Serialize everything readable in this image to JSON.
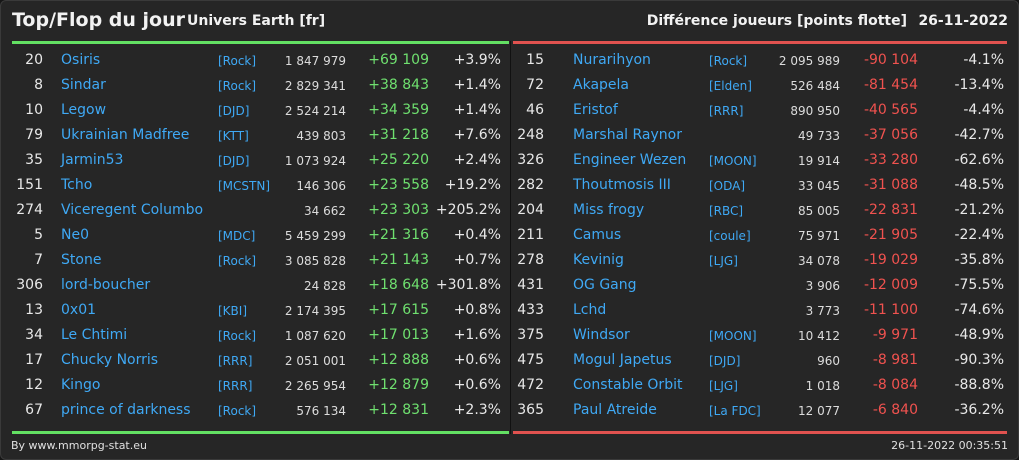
{
  "header": {
    "title": "Top/Flop du jour",
    "subtitle": "Univers Earth [fr]",
    "metric": "Différence joueurs [points flotte]",
    "date": "26-11-2022"
  },
  "colors": {
    "gain": "#6fe06f",
    "loss": "#f0524f",
    "link": "#3fa9f5"
  },
  "top": [
    {
      "rank": "20",
      "name": "Osiris",
      "alliance": "[Rock]",
      "points": "1 847 979",
      "diff": "+69 109",
      "pct": "+3.9%"
    },
    {
      "rank": "8",
      "name": "Sindar",
      "alliance": "[Rock]",
      "points": "2 829 341",
      "diff": "+38 843",
      "pct": "+1.4%"
    },
    {
      "rank": "10",
      "name": "Legow",
      "alliance": "[DJD]",
      "points": "2 524 214",
      "diff": "+34 359",
      "pct": "+1.4%"
    },
    {
      "rank": "79",
      "name": "Ukrainian Madfree",
      "alliance": "[KTT]",
      "points": "439 803",
      "diff": "+31 218",
      "pct": "+7.6%"
    },
    {
      "rank": "35",
      "name": "Jarmin53",
      "alliance": "[DJD]",
      "points": "1 073 924",
      "diff": "+25 220",
      "pct": "+2.4%"
    },
    {
      "rank": "151",
      "name": "Tcho",
      "alliance": "[MCSTN]",
      "points": "146 306",
      "diff": "+23 558",
      "pct": "+19.2%"
    },
    {
      "rank": "274",
      "name": "Viceregent Columbo",
      "alliance": "",
      "points": "34 662",
      "diff": "+23 303",
      "pct": "+205.2%"
    },
    {
      "rank": "5",
      "name": "Ne0",
      "alliance": "[MDC]",
      "points": "5 459 299",
      "diff": "+21 316",
      "pct": "+0.4%"
    },
    {
      "rank": "7",
      "name": "Stone",
      "alliance": "[Rock]",
      "points": "3 085 828",
      "diff": "+21 143",
      "pct": "+0.7%"
    },
    {
      "rank": "306",
      "name": "lord-boucher",
      "alliance": "",
      "points": "24 828",
      "diff": "+18 648",
      "pct": "+301.8%"
    },
    {
      "rank": "13",
      "name": "0x01",
      "alliance": "[KBI]",
      "points": "2 174 395",
      "diff": "+17 615",
      "pct": "+0.8%"
    },
    {
      "rank": "34",
      "name": "Le Chtimi",
      "alliance": "[Rock]",
      "points": "1 087 620",
      "diff": "+17 013",
      "pct": "+1.6%"
    },
    {
      "rank": "17",
      "name": "Chucky Norris",
      "alliance": "[RRR]",
      "points": "2 051 001",
      "diff": "+12 888",
      "pct": "+0.6%"
    },
    {
      "rank": "12",
      "name": "Kingo",
      "alliance": "[RRR]",
      "points": "2 265 954",
      "diff": "+12 879",
      "pct": "+0.6%"
    },
    {
      "rank": "67",
      "name": "prince of darkness",
      "alliance": "[Rock]",
      "points": "576 134",
      "diff": "+12 831",
      "pct": "+2.3%"
    }
  ],
  "flop": [
    {
      "rank": "15",
      "name": "Nurarihyon",
      "alliance": "[Rock]",
      "points": "2 095 989",
      "diff": "-90 104",
      "pct": "-4.1%"
    },
    {
      "rank": "72",
      "name": "Akapela",
      "alliance": "[Elden]",
      "points": "526 484",
      "diff": "-81 454",
      "pct": "-13.4%"
    },
    {
      "rank": "46",
      "name": "Eristof",
      "alliance": "[RRR]",
      "points": "890 950",
      "diff": "-40 565",
      "pct": "-4.4%"
    },
    {
      "rank": "248",
      "name": "Marshal Raynor",
      "alliance": "",
      "points": "49 733",
      "diff": "-37 056",
      "pct": "-42.7%"
    },
    {
      "rank": "326",
      "name": "Engineer Wezen",
      "alliance": "[MOON]",
      "points": "19 914",
      "diff": "-33 280",
      "pct": "-62.6%"
    },
    {
      "rank": "282",
      "name": "Thoutmosis III",
      "alliance": "[ODA]",
      "points": "33 045",
      "diff": "-31 088",
      "pct": "-48.5%"
    },
    {
      "rank": "204",
      "name": "Miss frogy",
      "alliance": "[RBC]",
      "points": "85 005",
      "diff": "-22 831",
      "pct": "-21.2%"
    },
    {
      "rank": "211",
      "name": "Camus",
      "alliance": "[coule]",
      "points": "75 971",
      "diff": "-21 905",
      "pct": "-22.4%"
    },
    {
      "rank": "278",
      "name": "Kevinig",
      "alliance": "[LJG]",
      "points": "34 078",
      "diff": "-19 029",
      "pct": "-35.8%"
    },
    {
      "rank": "431",
      "name": "OG Gang",
      "alliance": "",
      "points": "3 906",
      "diff": "-12 009",
      "pct": "-75.5%"
    },
    {
      "rank": "433",
      "name": "Lchd",
      "alliance": "",
      "points": "3 773",
      "diff": "-11 100",
      "pct": "-74.6%"
    },
    {
      "rank": "375",
      "name": "Windsor",
      "alliance": "[MOON]",
      "points": "10 412",
      "diff": "-9 971",
      "pct": "-48.9%"
    },
    {
      "rank": "475",
      "name": "Mogul Japetus",
      "alliance": "[DJD]",
      "points": "960",
      "diff": "-8 981",
      "pct": "-90.3%"
    },
    {
      "rank": "472",
      "name": "Constable Orbit",
      "alliance": "[LJG]",
      "points": "1 018",
      "diff": "-8 084",
      "pct": "-88.8%"
    },
    {
      "rank": "365",
      "name": "Paul Atreide",
      "alliance": "[La FDC]",
      "points": "12 077",
      "diff": "-6 840",
      "pct": "-36.2%"
    }
  ],
  "footer": {
    "credit": "By www.mmorpg-stat.eu",
    "timestamp": "26-11-2022 00:35:51"
  }
}
